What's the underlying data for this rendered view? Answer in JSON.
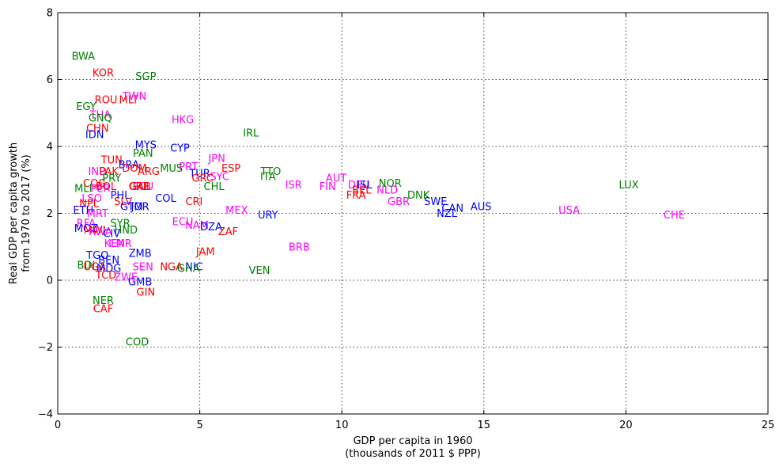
{
  "chart_data": {
    "type": "scatter",
    "title": "",
    "xlabel": "GDP per capita in 1960",
    "xlabel_line2": "(thousands of 2011 $ PPP)",
    "ylabel": "Real GDP per capita growth",
    "ylabel_line2": "from 1970 to 2017 (%)",
    "xlim": [
      0,
      25
    ],
    "ylim": [
      -4,
      8
    ],
    "x_ticks": [
      0,
      5,
      10,
      15,
      20,
      25
    ],
    "y_ticks": [
      -4,
      -2,
      0,
      2,
      4,
      6,
      8
    ],
    "grid": true,
    "colors": {
      "red": "#ff0000",
      "green": "#008000",
      "blue": "#0000ff",
      "magenta": "#ff00ff"
    },
    "points": [
      {
        "label": "BWA",
        "x": 0.9,
        "y": 6.7,
        "color": "green"
      },
      {
        "label": "KOR",
        "x": 1.6,
        "y": 6.2,
        "color": "red"
      },
      {
        "label": "SGP",
        "x": 3.1,
        "y": 6.1,
        "color": "green"
      },
      {
        "label": "ROU",
        "x": 1.7,
        "y": 5.4,
        "color": "red"
      },
      {
        "label": "MLT",
        "x": 2.5,
        "y": 5.4,
        "color": "red"
      },
      {
        "label": "TWN",
        "x": 2.7,
        "y": 5.5,
        "color": "magenta"
      },
      {
        "label": "EGY",
        "x": 1.0,
        "y": 5.2,
        "color": "green"
      },
      {
        "label": "THA",
        "x": 1.5,
        "y": 4.95,
        "color": "magenta"
      },
      {
        "label": "GNQ",
        "x": 1.5,
        "y": 4.85,
        "color": "green"
      },
      {
        "label": "HKG",
        "x": 4.4,
        "y": 4.8,
        "color": "magenta"
      },
      {
        "label": "CHN",
        "x": 1.4,
        "y": 4.55,
        "color": "red"
      },
      {
        "label": "IDN",
        "x": 1.3,
        "y": 4.35,
        "color": "blue"
      },
      {
        "label": "IRL",
        "x": 6.8,
        "y": 4.4,
        "color": "green"
      },
      {
        "label": "MYS",
        "x": 3.1,
        "y": 4.05,
        "color": "blue"
      },
      {
        "label": "CYP",
        "x": 4.3,
        "y": 3.95,
        "color": "blue"
      },
      {
        "label": "PAN",
        "x": 3.0,
        "y": 3.8,
        "color": "green"
      },
      {
        "label": "JPN",
        "x": 5.6,
        "y": 3.65,
        "color": "magenta"
      },
      {
        "label": "TUN",
        "x": 1.9,
        "y": 3.6,
        "color": "red"
      },
      {
        "label": "BRA",
        "x": 2.5,
        "y": 3.45,
        "color": "blue"
      },
      {
        "label": "DOM",
        "x": 2.7,
        "y": 3.35,
        "color": "red"
      },
      {
        "label": "PRT",
        "x": 4.6,
        "y": 3.4,
        "color": "magenta"
      },
      {
        "label": "ESP",
        "x": 6.1,
        "y": 3.35,
        "color": "red"
      },
      {
        "label": "MUS",
        "x": 4.0,
        "y": 3.35,
        "color": "green"
      },
      {
        "label": "IND",
        "x": 1.4,
        "y": 3.25,
        "color": "magenta"
      },
      {
        "label": "PAK",
        "x": 1.8,
        "y": 3.25,
        "color": "red"
      },
      {
        "label": "ARG",
        "x": 3.2,
        "y": 3.25,
        "color": "red"
      },
      {
        "label": "TUR",
        "x": 5.0,
        "y": 3.2,
        "color": "blue"
      },
      {
        "label": "TTO",
        "x": 7.5,
        "y": 3.25,
        "color": "green"
      },
      {
        "label": "GRC",
        "x": 5.1,
        "y": 3.05,
        "color": "red"
      },
      {
        "label": "SYC",
        "x": 5.7,
        "y": 3.1,
        "color": "magenta"
      },
      {
        "label": "ITA",
        "x": 7.4,
        "y": 3.1,
        "color": "green"
      },
      {
        "label": "AUT",
        "x": 9.8,
        "y": 3.05,
        "color": "magenta"
      },
      {
        "label": "PRY",
        "x": 1.9,
        "y": 3.05,
        "color": "green"
      },
      {
        "label": "COG",
        "x": 1.3,
        "y": 2.9,
        "color": "red"
      },
      {
        "label": "ISR",
        "x": 8.3,
        "y": 2.85,
        "color": "magenta"
      },
      {
        "label": "DEU",
        "x": 10.6,
        "y": 2.85,
        "color": "magenta"
      },
      {
        "label": "ISL",
        "x": 10.8,
        "y": 2.85,
        "color": "blue"
      },
      {
        "label": "NOR",
        "x": 11.7,
        "y": 2.9,
        "color": "green"
      },
      {
        "label": "LUX",
        "x": 20.1,
        "y": 2.85,
        "color": "green"
      },
      {
        "label": "CHL",
        "x": 5.5,
        "y": 2.8,
        "color": "green"
      },
      {
        "label": "FIN",
        "x": 9.5,
        "y": 2.8,
        "color": "magenta"
      },
      {
        "label": "BEL",
        "x": 10.7,
        "y": 2.7,
        "color": "red"
      },
      {
        "label": "NLD",
        "x": 11.6,
        "y": 2.7,
        "color": "magenta"
      },
      {
        "label": "MLI",
        "x": 0.9,
        "y": 2.75,
        "color": "green"
      },
      {
        "label": "PER",
        "x": 1.5,
        "y": 2.75,
        "color": "magenta"
      },
      {
        "label": "BOL",
        "x": 1.7,
        "y": 2.8,
        "color": "red"
      },
      {
        "label": "ECU",
        "x": 3.0,
        "y": 2.8,
        "color": "magenta"
      },
      {
        "label": "GAB",
        "x": 2.9,
        "y": 2.8,
        "color": "red"
      },
      {
        "label": "CRI",
        "x": 2.8,
        "y": 2.8,
        "color": "red"
      },
      {
        "label": "PHL",
        "x": 2.2,
        "y": 2.55,
        "color": "blue"
      },
      {
        "label": "FRA",
        "x": 10.5,
        "y": 2.55,
        "color": "red"
      },
      {
        "label": "DNK",
        "x": 12.7,
        "y": 2.55,
        "color": "green"
      },
      {
        "label": "LSO",
        "x": 1.2,
        "y": 2.45,
        "color": "magenta"
      },
      {
        "label": "COL",
        "x": 3.8,
        "y": 2.45,
        "color": "blue"
      },
      {
        "label": "SLV",
        "x": 2.3,
        "y": 2.35,
        "color": "red"
      },
      {
        "label": "CRI",
        "x": 4.8,
        "y": 2.35,
        "color": "red"
      },
      {
        "label": "GBR",
        "x": 12.0,
        "y": 2.35,
        "color": "magenta"
      },
      {
        "label": "SWE",
        "x": 13.3,
        "y": 2.35,
        "color": "blue"
      },
      {
        "label": "NPL",
        "x": 1.1,
        "y": 2.3,
        "color": "red"
      },
      {
        "label": "GTM",
        "x": 2.6,
        "y": 2.2,
        "color": "blue"
      },
      {
        "label": "JOR",
        "x": 2.9,
        "y": 2.2,
        "color": "blue"
      },
      {
        "label": "CAN",
        "x": 13.9,
        "y": 2.15,
        "color": "blue"
      },
      {
        "label": "AUS",
        "x": 14.9,
        "y": 2.2,
        "color": "blue"
      },
      {
        "label": "USA",
        "x": 18.0,
        "y": 2.1,
        "color": "magenta"
      },
      {
        "label": "ETH",
        "x": 0.9,
        "y": 2.1,
        "color": "blue"
      },
      {
        "label": "MEX",
        "x": 6.3,
        "y": 2.1,
        "color": "magenta"
      },
      {
        "label": "MRT",
        "x": 1.4,
        "y": 2.0,
        "color": "magenta"
      },
      {
        "label": "URY",
        "x": 7.4,
        "y": 1.95,
        "color": "blue"
      },
      {
        "label": "NZL",
        "x": 13.7,
        "y": 2.0,
        "color": "blue"
      },
      {
        "label": "CHE",
        "x": 21.7,
        "y": 1.95,
        "color": "magenta"
      },
      {
        "label": "RFA",
        "x": 1.0,
        "y": 1.7,
        "color": "magenta"
      },
      {
        "label": "SYR",
        "x": 2.2,
        "y": 1.7,
        "color": "green"
      },
      {
        "label": "ECU",
        "x": 4.4,
        "y": 1.75,
        "color": "magenta"
      },
      {
        "label": "NAM",
        "x": 4.9,
        "y": 1.65,
        "color": "magenta"
      },
      {
        "label": "DZA",
        "x": 5.4,
        "y": 1.6,
        "color": "blue"
      },
      {
        "label": "MOZ",
        "x": 1.0,
        "y": 1.55,
        "color": "blue"
      },
      {
        "label": "ZAF",
        "x": 6.0,
        "y": 1.45,
        "color": "red"
      },
      {
        "label": "MWI",
        "x": 1.3,
        "y": 1.5,
        "color": "red"
      },
      {
        "label": "HND",
        "x": 2.4,
        "y": 1.5,
        "color": "green"
      },
      {
        "label": "RWA",
        "x": 1.5,
        "y": 1.45,
        "color": "magenta"
      },
      {
        "label": "CIV",
        "x": 1.9,
        "y": 1.4,
        "color": "blue"
      },
      {
        "label": "KEN",
        "x": 2.0,
        "y": 1.1,
        "color": "magenta"
      },
      {
        "label": "CMR",
        "x": 2.2,
        "y": 1.1,
        "color": "magenta"
      },
      {
        "label": "BRB",
        "x": 8.5,
        "y": 1.0,
        "color": "magenta"
      },
      {
        "label": "JAM",
        "x": 5.2,
        "y": 0.85,
        "color": "red"
      },
      {
        "label": "TGO",
        "x": 1.4,
        "y": 0.75,
        "color": "blue"
      },
      {
        "label": "ZMB",
        "x": 2.9,
        "y": 0.8,
        "color": "blue"
      },
      {
        "label": "BEN",
        "x": 1.8,
        "y": 0.6,
        "color": "blue"
      },
      {
        "label": "BDI",
        "x": 1.0,
        "y": 0.45,
        "color": "green"
      },
      {
        "label": "UGA",
        "x": 1.3,
        "y": 0.4,
        "color": "red"
      },
      {
        "label": "SEN",
        "x": 3.0,
        "y": 0.4,
        "color": "magenta"
      },
      {
        "label": "NGA",
        "x": 4.0,
        "y": 0.4,
        "color": "red"
      },
      {
        "label": "NIC",
        "x": 4.8,
        "y": 0.4,
        "color": "blue"
      },
      {
        "label": "GHA",
        "x": 4.6,
        "y": 0.35,
        "color": "green"
      },
      {
        "label": "VEN",
        "x": 7.1,
        "y": 0.3,
        "color": "green"
      },
      {
        "label": "MDG",
        "x": 1.8,
        "y": 0.35,
        "color": "blue"
      },
      {
        "label": "TCD",
        "x": 1.7,
        "y": 0.15,
        "color": "red"
      },
      {
        "label": "ZWE",
        "x": 2.4,
        "y": 0.1,
        "color": "magenta"
      },
      {
        "label": "GMB",
        "x": 2.9,
        "y": -0.05,
        "color": "blue"
      },
      {
        "label": "GIN",
        "x": 3.1,
        "y": -0.35,
        "color": "red"
      },
      {
        "label": "NER",
        "x": 1.6,
        "y": -0.6,
        "color": "green"
      },
      {
        "label": "CAF",
        "x": 1.6,
        "y": -0.85,
        "color": "red"
      },
      {
        "label": "COD",
        "x": 2.8,
        "y": -1.85,
        "color": "green"
      }
    ]
  }
}
